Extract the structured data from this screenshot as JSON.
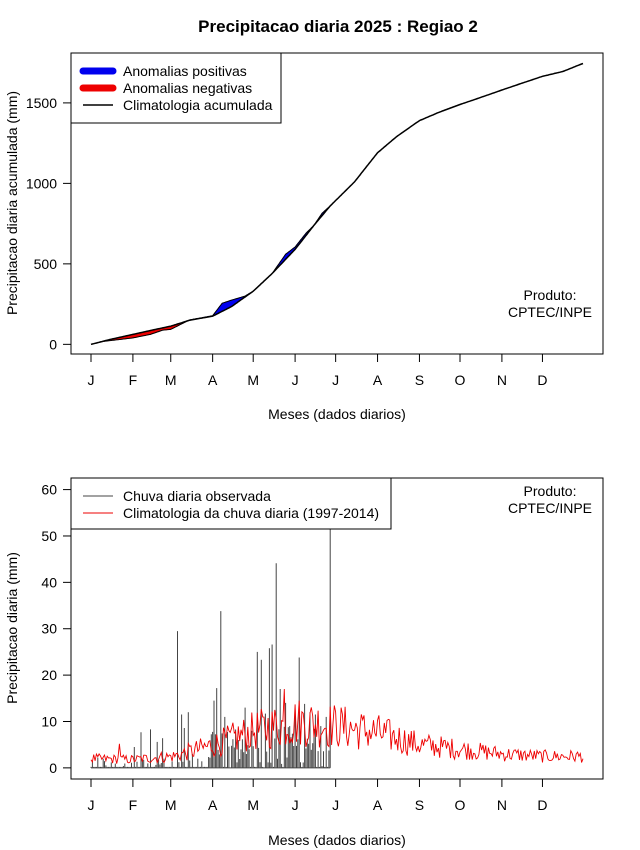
{
  "title": "Precipitacao diaria 2025 : Regiao 2",
  "colors": {
    "positive": "#0000ee",
    "negative": "#ee0000",
    "climatology": "#000000",
    "observed": "#444444",
    "clim_daily": "#ee0000"
  },
  "chart_data": [
    {
      "type": "area",
      "ylabel": "Precipitacao diaria acumulada (mm)",
      "xlabel": "Meses (dados diarios)",
      "x_ticks": [
        "J",
        "F",
        "M",
        "A",
        "M",
        "J",
        "J",
        "A",
        "S",
        "O",
        "N",
        "D"
      ],
      "y_ticks": [
        0,
        500,
        1000,
        1500
      ],
      "xlim": [
        1,
        365
      ],
      "ylim": [
        -60,
        1810
      ],
      "legend": {
        "placement": "top-left",
        "entries": [
          "Anomalias positivas",
          "Anomalias negativas",
          "Climatologia acumulada"
        ]
      },
      "annotation": [
        "Produto:",
        "CPTEC/INPE"
      ],
      "observed_last_day": 178,
      "series": [
        {
          "name": "Climatologia acumulada",
          "x": [
            1,
            15,
            32,
            46,
            60,
            74,
            91,
            105,
            121,
            135,
            152,
            166,
            178,
            196,
            213,
            227,
            244,
            258,
            274,
            288,
            305,
            319,
            335,
            350,
            365
          ],
          "y": [
            0,
            30,
            62,
            88,
            113,
            150,
            175,
            235,
            330,
            440,
            590,
            740,
            860,
            1010,
            1190,
            1290,
            1390,
            1440,
            1490,
            1530,
            1580,
            1620,
            1665,
            1695,
            1745
          ]
        },
        {
          "name": "Observed accumulated",
          "x": [
            1,
            10,
            20,
            32,
            45,
            54,
            60,
            74,
            91,
            98,
            105,
            115,
            121,
            135,
            145,
            152,
            160,
            166,
            172,
            178
          ],
          "y": [
            0,
            18,
            28,
            40,
            62,
            88,
            93,
            152,
            178,
            255,
            275,
            300,
            330,
            440,
            560,
            605,
            690,
            740,
            815,
            860
          ]
        }
      ]
    },
    {
      "type": "bar",
      "ylabel": "Precipitacao diaria (mm)",
      "xlabel": "Meses (dados diarios)",
      "x_ticks": [
        "J",
        "F",
        "M",
        "A",
        "M",
        "J",
        "J",
        "A",
        "S",
        "O",
        "N",
        "D"
      ],
      "y_ticks": [
        0,
        10,
        20,
        30,
        40,
        50,
        60
      ],
      "xlim": [
        1,
        365
      ],
      "ylim": [
        -2.4,
        62.5
      ],
      "legend": {
        "placement": "top-left",
        "entries": [
          "Chuva diaria observada",
          "Climatologia da chuva diaria (1997-2014)"
        ]
      },
      "annotation": [
        "Produto:",
        "CPTEC/INPE"
      ],
      "observed_peaks": [
        {
          "day": 33,
          "value": 4.5
        },
        {
          "day": 38,
          "value": 7.7
        },
        {
          "day": 45,
          "value": 8.3
        },
        {
          "day": 50,
          "value": 5.6
        },
        {
          "day": 54,
          "value": 6.4
        },
        {
          "day": 65,
          "value": 29.5
        },
        {
          "day": 68,
          "value": 11.5
        },
        {
          "day": 70,
          "value": 8.6
        },
        {
          "day": 73,
          "value": 12.0
        },
        {
          "day": 76,
          "value": 3.0
        },
        {
          "day": 92,
          "value": 14.5
        },
        {
          "day": 94,
          "value": 17.2
        },
        {
          "day": 97,
          "value": 33.8
        },
        {
          "day": 100,
          "value": 11.0
        },
        {
          "day": 103,
          "value": 4.6
        },
        {
          "day": 110,
          "value": 6.0
        },
        {
          "day": 115,
          "value": 13.0
        },
        {
          "day": 118,
          "value": 4.0
        },
        {
          "day": 120,
          "value": 8.0
        },
        {
          "day": 124,
          "value": 25.0
        },
        {
          "day": 127,
          "value": 23.3
        },
        {
          "day": 130,
          "value": 11.7
        },
        {
          "day": 133,
          "value": 25.8
        },
        {
          "day": 135,
          "value": 26.6
        },
        {
          "day": 138,
          "value": 44.1
        },
        {
          "day": 141,
          "value": 17.0
        },
        {
          "day": 145,
          "value": 14.0
        },
        {
          "day": 148,
          "value": 9.0
        },
        {
          "day": 152,
          "value": 12.5
        },
        {
          "day": 155,
          "value": 23.8
        },
        {
          "day": 159,
          "value": 13.8
        },
        {
          "day": 163,
          "value": 12.0
        },
        {
          "day": 167,
          "value": 11.5
        },
        {
          "day": 171,
          "value": 9.0
        },
        {
          "day": 175,
          "value": 11.0
        },
        {
          "day": 178,
          "value": 52.0
        }
      ],
      "clim_daily_monthly_mean": [
        2.0,
        1.8,
        2.5,
        5.0,
        8.0,
        10.0,
        9.0,
        7.5,
        5.0,
        4.0,
        3.0,
        2.5
      ]
    }
  ]
}
